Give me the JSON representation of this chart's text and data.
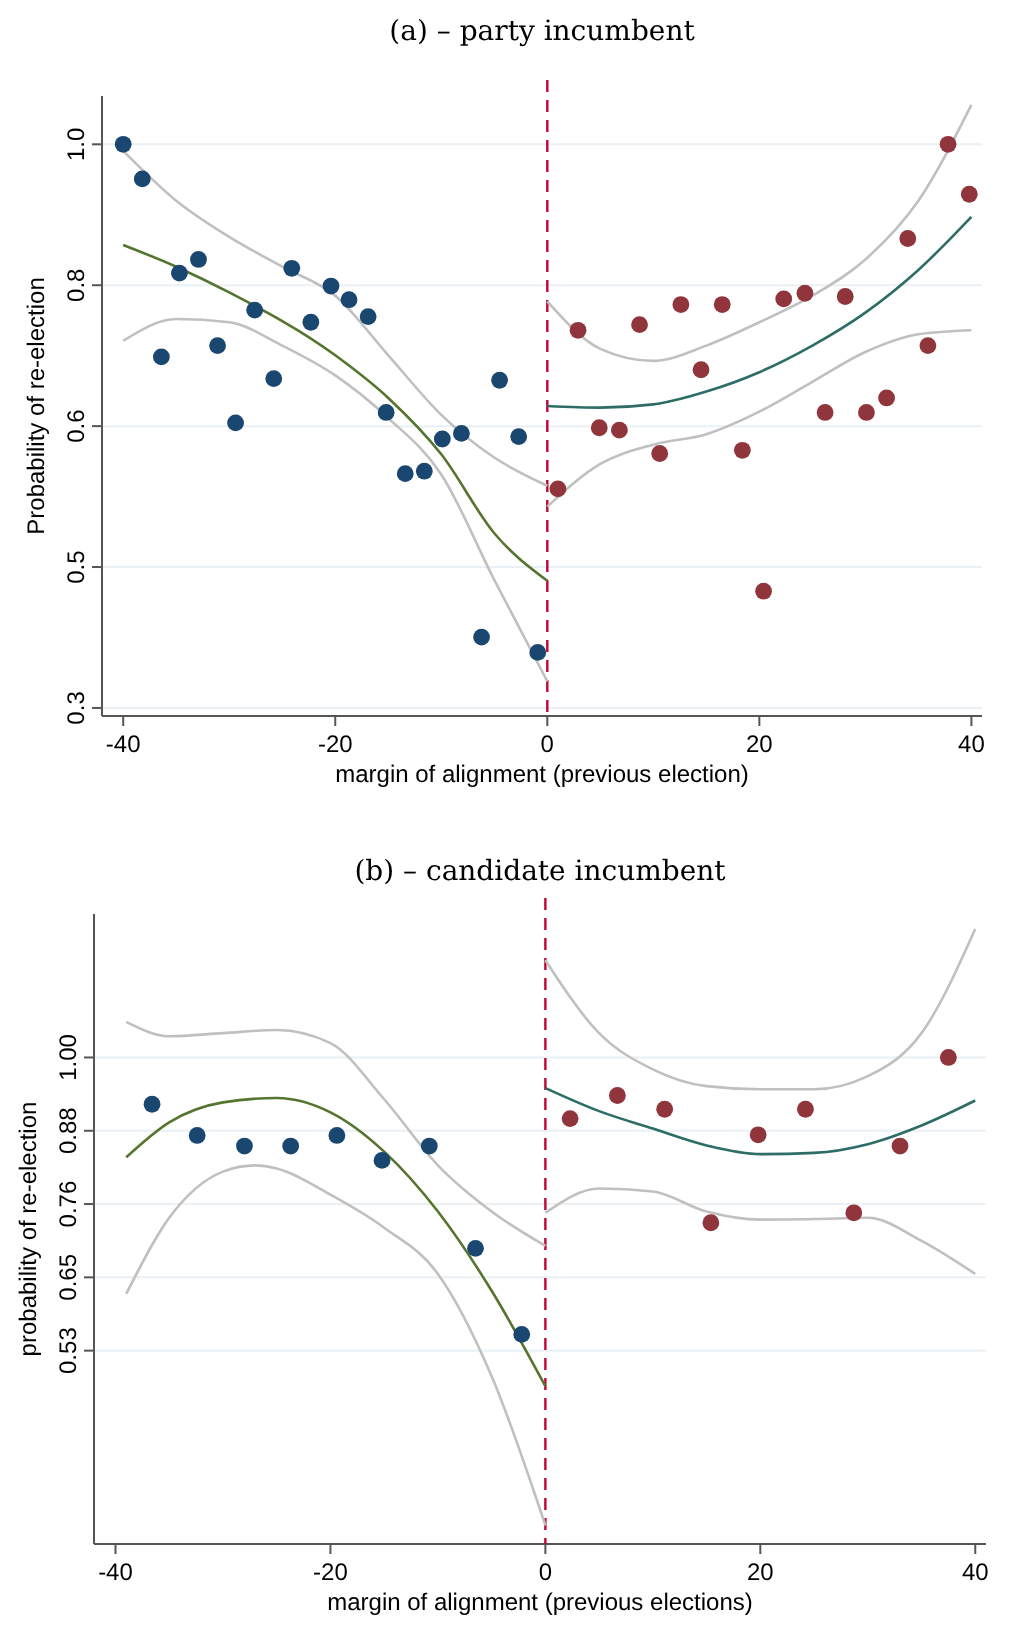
{
  "chart_data": [
    {
      "type": "scatter",
      "title": "(a) – party incumbent",
      "xlabel": "margin of alignment (previous election)",
      "ylabel": "Probability of re-election",
      "xlim": [
        -42,
        41
      ],
      "xticks": [
        -40,
        -20,
        0,
        20,
        40
      ],
      "ylim": [
        0.29,
        1.06
      ],
      "yticks": [
        {
          "value": 0.3,
          "label": "0.3"
        },
        {
          "value": 0.475,
          "label": "0.5"
        },
        {
          "value": 0.65,
          "label": "0.6"
        },
        {
          "value": 0.825,
          "label": "0.8"
        },
        {
          "value": 1.0,
          "label": "1.0"
        }
      ],
      "grid": "y",
      "ref_lines": [
        {
          "axis": "x",
          "value": 0,
          "color": "#c10534",
          "line_style": "dashed"
        }
      ],
      "series": [
        {
          "marker": "circle",
          "color": "#1a476f",
          "x": [
            -40,
            -38.2,
            -36.4,
            -34.7,
            -32.9,
            -31.1,
            -29.4,
            -27.6,
            -25.8,
            -24.1,
            -22.3,
            -20.4,
            -18.7,
            -16.9,
            -15.2,
            -13.4,
            -11.6,
            -9.9,
            -8.1,
            -6.2,
            -4.5,
            -2.7,
            -0.9
          ],
          "values": [
            1.0,
            0.957,
            0.736,
            0.84,
            0.857,
            0.75,
            0.654,
            0.794,
            0.709,
            0.846,
            0.779,
            0.824,
            0.807,
            0.786,
            0.667,
            0.591,
            0.594,
            0.634,
            0.641,
            0.388,
            0.707,
            0.637,
            0.369
          ]
        },
        {
          "marker": "circle",
          "color": "#90353b",
          "x": [
            1.0,
            2.9,
            4.9,
            6.8,
            8.7,
            10.6,
            12.6,
            14.5,
            16.5,
            18.4,
            20.4,
            22.3,
            24.3,
            26.2,
            28.1,
            30.1,
            32.0,
            34.0,
            35.9,
            37.8,
            39.8
          ],
          "values": [
            0.572,
            0.769,
            0.648,
            0.645,
            0.776,
            0.616,
            0.801,
            0.72,
            0.801,
            0.62,
            0.445,
            0.808,
            0.815,
            0.667,
            0.811,
            0.667,
            0.685,
            0.883,
            0.75,
            1.0,
            0.938
          ]
        },
        {
          "type": "line",
          "color": "#55752f",
          "x": [
            -40,
            -35,
            -30,
            -20,
            -15,
            -10,
            -5,
            0
          ],
          "values": [
            0.875,
            0.848,
            0.816,
            0.738,
            0.685,
            0.615,
            0.517,
            0.458
          ]
        },
        {
          "type": "line",
          "color": "#c0c0c0",
          "x": [
            -40,
            -35,
            -30,
            -25,
            -20,
            -15,
            -10,
            -5,
            0
          ],
          "values": [
            0.992,
            0.93,
            0.885,
            0.848,
            0.812,
            0.738,
            0.664,
            0.611,
            0.576
          ]
        },
        {
          "type": "line",
          "color": "#c0c0c0",
          "x": [
            -40,
            -35,
            -30,
            -25,
            -20,
            -15,
            -10,
            -5,
            0
          ],
          "values": [
            0.756,
            0.783,
            0.779,
            0.75,
            0.713,
            0.66,
            0.59,
            0.459,
            0.333
          ]
        },
        {
          "type": "line",
          "color": "#2d6d66",
          "x": [
            0,
            5,
            10,
            15,
            20,
            25,
            30,
            35,
            40
          ],
          "values": [
            0.675,
            0.673,
            0.677,
            0.693,
            0.717,
            0.75,
            0.791,
            0.844,
            0.91
          ]
        },
        {
          "type": "line",
          "color": "#c0c0c0",
          "x": [
            0,
            5,
            10,
            15,
            20,
            25,
            30,
            35,
            40
          ],
          "values": [
            0.805,
            0.746,
            0.731,
            0.75,
            0.779,
            0.812,
            0.857,
            0.93,
            1.049
          ]
        },
        {
          "type": "line",
          "color": "#c0c0c0",
          "x": [
            0,
            5,
            10,
            15,
            20,
            25,
            30,
            35,
            40
          ],
          "values": [
            0.55,
            0.603,
            0.627,
            0.64,
            0.668,
            0.705,
            0.742,
            0.764,
            0.769
          ]
        }
      ]
    },
    {
      "type": "scatter",
      "title": "(b) – candidate incumbent",
      "xlabel": "margin of alignment (previous elections)",
      "ylabel": "probability of re-election",
      "xlim": [
        -42,
        41
      ],
      "xticks": [
        -40,
        -20,
        0,
        20,
        40
      ],
      "ylim": [
        0.22,
        1.23
      ],
      "yticks": [
        {
          "value": 0.53,
          "label": "0.53"
        },
        {
          "value": 0.6475,
          "label": "0.65"
        },
        {
          "value": 0.765,
          "label": "0.76"
        },
        {
          "value": 0.8825,
          "label": "0.88"
        },
        {
          "value": 1.0,
          "label": "1.00"
        }
      ],
      "grid": "y",
      "ref_lines": [
        {
          "axis": "x",
          "value": 0,
          "color": "#c10534",
          "line_style": "dashed"
        }
      ],
      "series": [
        {
          "marker": "circle",
          "color": "#1a476f",
          "x": [
            -36.6,
            -32.4,
            -28.0,
            -23.7,
            -19.4,
            -15.2,
            -10.8,
            -6.5,
            -2.2
          ],
          "values": [
            0.925,
            0.875,
            0.858,
            0.858,
            0.875,
            0.835,
            0.858,
            0.694,
            0.556
          ]
        },
        {
          "marker": "circle",
          "color": "#90353b",
          "x": [
            2.3,
            6.7,
            11.1,
            15.4,
            19.8,
            24.2,
            28.7,
            33.0,
            37.5
          ],
          "values": [
            0.902,
            0.939,
            0.917,
            0.735,
            0.876,
            0.917,
            0.751,
            0.858,
            1.0
          ]
        },
        {
          "type": "line",
          "color": "#55752f",
          "x": [
            -39,
            -35,
            -30,
            -25,
            -20,
            -15,
            -10,
            -5,
            0
          ],
          "values": [
            0.84,
            0.896,
            0.928,
            0.935,
            0.912,
            0.849,
            0.753,
            0.626,
            0.473
          ]
        },
        {
          "type": "line",
          "color": "#c0c0c0",
          "x": [
            -39,
            -35,
            -30,
            -25,
            -20,
            -15,
            -10,
            -5,
            0
          ],
          "values": [
            1.057,
            1.034,
            1.039,
            1.044,
            1.023,
            0.933,
            0.827,
            0.753,
            0.698
          ]
        },
        {
          "type": "line",
          "color": "#c0c0c0",
          "x": [
            -39,
            -35,
            -30,
            -27,
            -25,
            -20,
            -15,
            -10,
            -5,
            0
          ],
          "values": [
            0.621,
            0.743,
            0.817,
            0.827,
            0.822,
            0.78,
            0.727,
            0.653,
            0.489,
            0.25
          ]
        },
        {
          "type": "line",
          "color": "#2d6d66",
          "x": [
            0,
            5,
            10,
            15,
            20,
            25,
            30,
            35,
            40
          ],
          "values": [
            0.951,
            0.914,
            0.886,
            0.859,
            0.845,
            0.847,
            0.861,
            0.891,
            0.931
          ]
        },
        {
          "type": "line",
          "color": "#c0c0c0",
          "x": [
            0,
            5,
            10,
            15,
            20,
            25,
            30,
            35,
            40
          ],
          "values": [
            1.156,
            1.039,
            0.981,
            0.954,
            0.949,
            0.949,
            0.97,
            1.039,
            1.206
          ]
        },
        {
          "type": "line",
          "color": "#c0c0c0",
          "x": [
            0,
            5,
            10,
            15,
            20,
            25,
            30,
            35,
            40
          ],
          "values": [
            0.751,
            0.79,
            0.785,
            0.753,
            0.74,
            0.741,
            0.743,
            0.706,
            0.653
          ]
        }
      ]
    }
  ]
}
